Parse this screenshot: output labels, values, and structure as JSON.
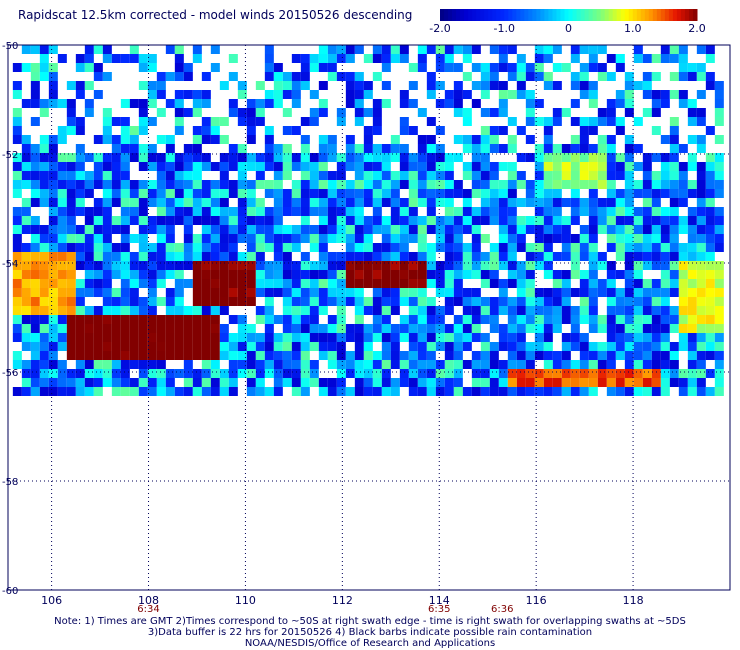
{
  "header": {
    "title": "Rapidscat 12.5km corrected - model winds 20150526 descending"
  },
  "colorbar": {
    "ticks": [
      "-2.0",
      "-1.0",
      "0",
      "1.0",
      "2.0"
    ],
    "range": [
      -2.0,
      2.0
    ]
  },
  "axes": {
    "x_ticks": [
      "106",
      "108",
      "110",
      "112",
      "114",
      "116",
      "118"
    ],
    "y_ticks": [
      "-50",
      "-52",
      "-54",
      "-56",
      "-58",
      "-60"
    ],
    "time_labels": [
      "6:34",
      "6:35",
      "6:36"
    ]
  },
  "notes": {
    "line1": "Note: 1) Times are GMT 2)Times correspond to ~50S at right swath edge - time is right swath for overlapping swaths at ~5DS",
    "line2": "3)Data buffer is 22 hrs for 20150526 4) Black barbs indicate possible rain contamination",
    "line3": "NOAA/NESDIS/Office of Research and Applications"
  },
  "chart_data": {
    "type": "heatmap",
    "title": "Rapidscat 12.5km corrected - model winds 20150526 descending",
    "x_ticks": [
      106,
      108,
      110,
      112,
      114,
      116,
      118
    ],
    "y_ticks": [
      -50,
      -52,
      -54,
      -56,
      -58,
      -60
    ],
    "xlim": [
      105.1,
      120.0
    ],
    "ylim": [
      -60.0,
      -50.0
    ],
    "grid": true,
    "color_scale": {
      "min": -2.0,
      "max": 2.0,
      "label_ticks": [
        -2.0,
        -1.0,
        0,
        1.0,
        2.0
      ]
    },
    "time_labels": [
      {
        "lon": 108.0,
        "text": "6:34"
      },
      {
        "lon": 114.0,
        "text": "6:35"
      },
      {
        "lon": 115.3,
        "text": "6:36"
      }
    ],
    "field_regions": [
      {
        "lon": [
          105.2,
          119.8
        ],
        "lat": [
          -56.3,
          -50.0
        ],
        "value": -0.6,
        "desc": "broad swath, mixed blue/cyan"
      },
      {
        "lon": [
          106.4,
          109.5
        ],
        "lat": [
          -55.8,
          -55.0
        ],
        "value": 2.2,
        "desc": "dark red core"
      },
      {
        "lon": [
          109.0,
          110.3
        ],
        "lat": [
          -54.8,
          -53.9
        ],
        "value": 2.1,
        "desc": "dark red core"
      },
      {
        "lon": [
          112.0,
          113.8
        ],
        "lat": [
          -54.5,
          -53.9
        ],
        "value": 2.1,
        "desc": "dark red core"
      },
      {
        "lon": [
          105.2,
          106.5
        ],
        "lat": [
          -55.0,
          -53.8
        ],
        "value": 1.2,
        "desc": "orange/yellow edge"
      },
      {
        "lon": [
          116.2,
          117.4
        ],
        "lat": [
          -52.6,
          -52.0
        ],
        "value": 0.6,
        "desc": "yellow/orange patch"
      },
      {
        "lon": [
          119.0,
          119.8
        ],
        "lat": [
          -55.3,
          -54.0
        ],
        "value": 0.8,
        "desc": "yellow/orange patch"
      },
      {
        "lon": [
          115.5,
          118.5
        ],
        "lat": [
          -56.3,
          -56.0
        ],
        "value": 1.5,
        "desc": "red patches at swath bottom"
      }
    ]
  }
}
